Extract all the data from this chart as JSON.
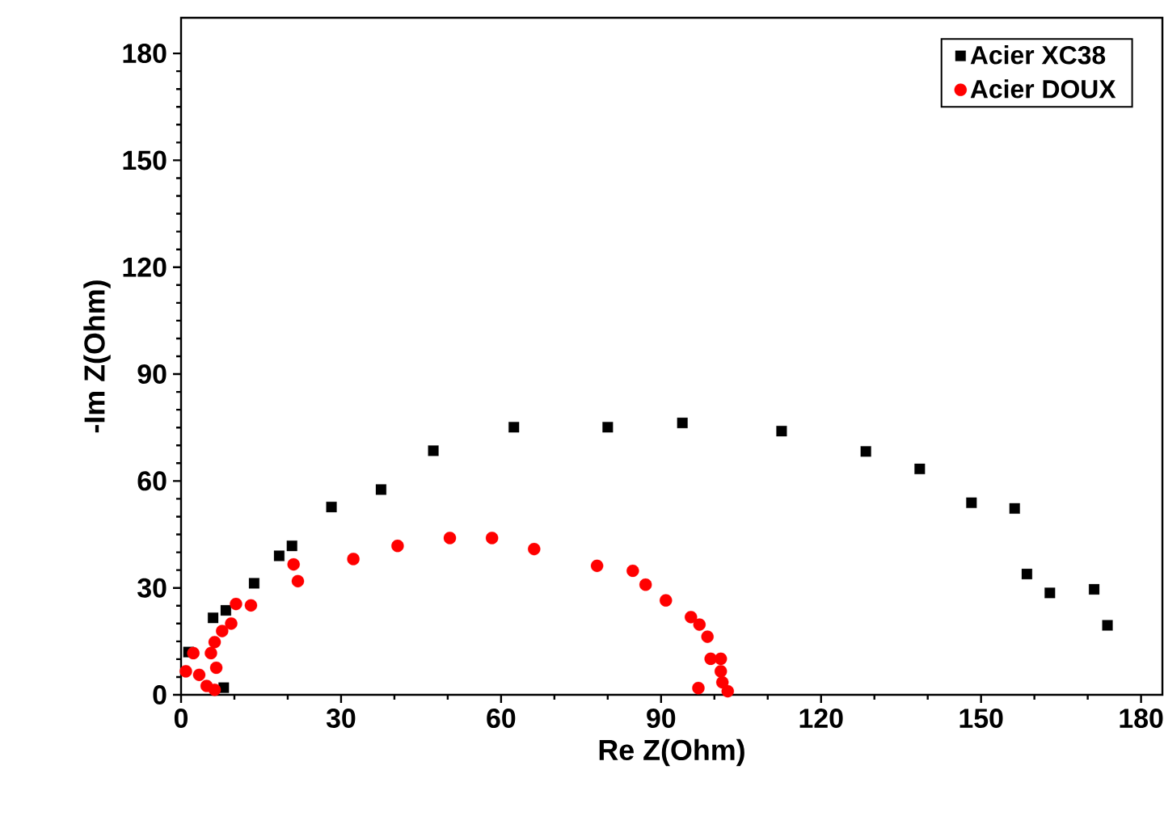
{
  "chart_data": {
    "type": "scatter",
    "xlabel": "Re Z(Ohm)",
    "ylabel": "-Im Z(Ohm)",
    "xlim": [
      0,
      184
    ],
    "ylim": [
      0,
      190
    ],
    "xticks": [
      0,
      30,
      60,
      90,
      120,
      150,
      180
    ],
    "yticks": [
      0,
      30,
      60,
      90,
      120,
      150,
      180
    ],
    "legend": "top right",
    "grid": false,
    "series": [
      {
        "name": "Acier XC38",
        "color": "#000000",
        "marker": "square",
        "x": [
          1.4,
          8,
          6,
          8.4,
          13.7,
          18.4,
          20.8,
          28.2,
          37.5,
          47.3,
          62.4,
          80,
          94,
          112.6,
          128.4,
          138.5,
          148.2,
          156.3,
          158.6,
          162.9,
          171.2,
          173.7
        ],
        "values": [
          12,
          2,
          21.6,
          23.7,
          31.3,
          39,
          41.8,
          52.7,
          57.6,
          68.5,
          75.1,
          75.1,
          76.3,
          74,
          68.3,
          63.4,
          53.9,
          52.3,
          33.9,
          28.6,
          29.6,
          19.5
        ]
      },
      {
        "name": "Acier DOUX",
        "color": "#ff0000",
        "marker": "circle",
        "x": [
          0.9,
          2.3,
          3.4,
          4.8,
          6.3,
          6.6,
          5.6,
          6.3,
          7.7,
          9.4,
          10.3,
          13.1,
          21.1,
          21.9,
          32.3,
          40.6,
          50.4,
          58.3,
          66.2,
          78,
          84.7,
          87.1,
          90.9,
          95.6,
          97.2,
          98.7,
          99.3,
          101.2,
          101.2,
          101.5,
          102.5,
          97
        ],
        "values": [
          6.6,
          11.7,
          5.6,
          2.5,
          1.4,
          7.6,
          11.7,
          14.8,
          17.9,
          20,
          25.5,
          25.1,
          36.6,
          31.9,
          38.1,
          41.8,
          44,
          44,
          40.9,
          36.2,
          34.8,
          30.9,
          26.5,
          21.8,
          19.7,
          16.3,
          10.1,
          10.1,
          6.6,
          3.5,
          1,
          1.9
        ]
      }
    ]
  }
}
